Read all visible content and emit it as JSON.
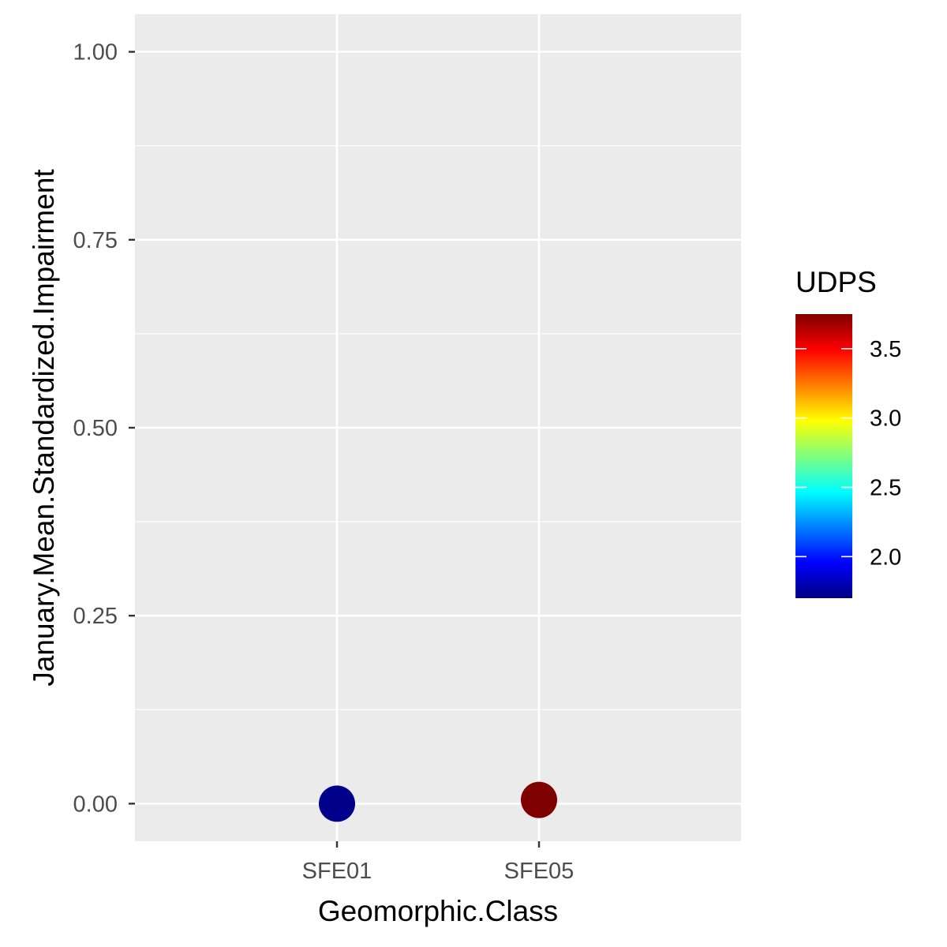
{
  "chart_data": {
    "type": "scatter",
    "xlabel": "Geomorphic.Class",
    "ylabel": "January.Mean.Standardized.Impairment",
    "categories": [
      "SFE01",
      "SFE05"
    ],
    "ylim": [
      -0.05,
      1.05
    ],
    "y_ticks": [
      0,
      0.25,
      0.5,
      0.75,
      1
    ],
    "y_tick_labels": [
      "0.00",
      "0.25",
      "0.50",
      "0.75",
      "1.00"
    ],
    "grid": true,
    "points": [
      {
        "x": "SFE01",
        "y": 0.0,
        "color_value": 1.7,
        "color": "#00008B"
      },
      {
        "x": "SFE05",
        "y": 0.005,
        "color_value": 3.75,
        "color": "#7F0000"
      }
    ],
    "legend": {
      "title": "UDPS",
      "placement": "right",
      "range": [
        1.7,
        3.75
      ],
      "ticks": [
        2.0,
        2.5,
        3.0,
        3.5
      ],
      "tick_labels": [
        "2.0",
        "2.5",
        "3.0",
        "3.5"
      ],
      "colormap": [
        "#00007F",
        "#0000FF",
        "#007FFF",
        "#00FFFF",
        "#7FFF7F",
        "#FFFF00",
        "#FF7F00",
        "#FF0000",
        "#7F0000"
      ]
    },
    "panel_background": "#EBEBEB"
  }
}
